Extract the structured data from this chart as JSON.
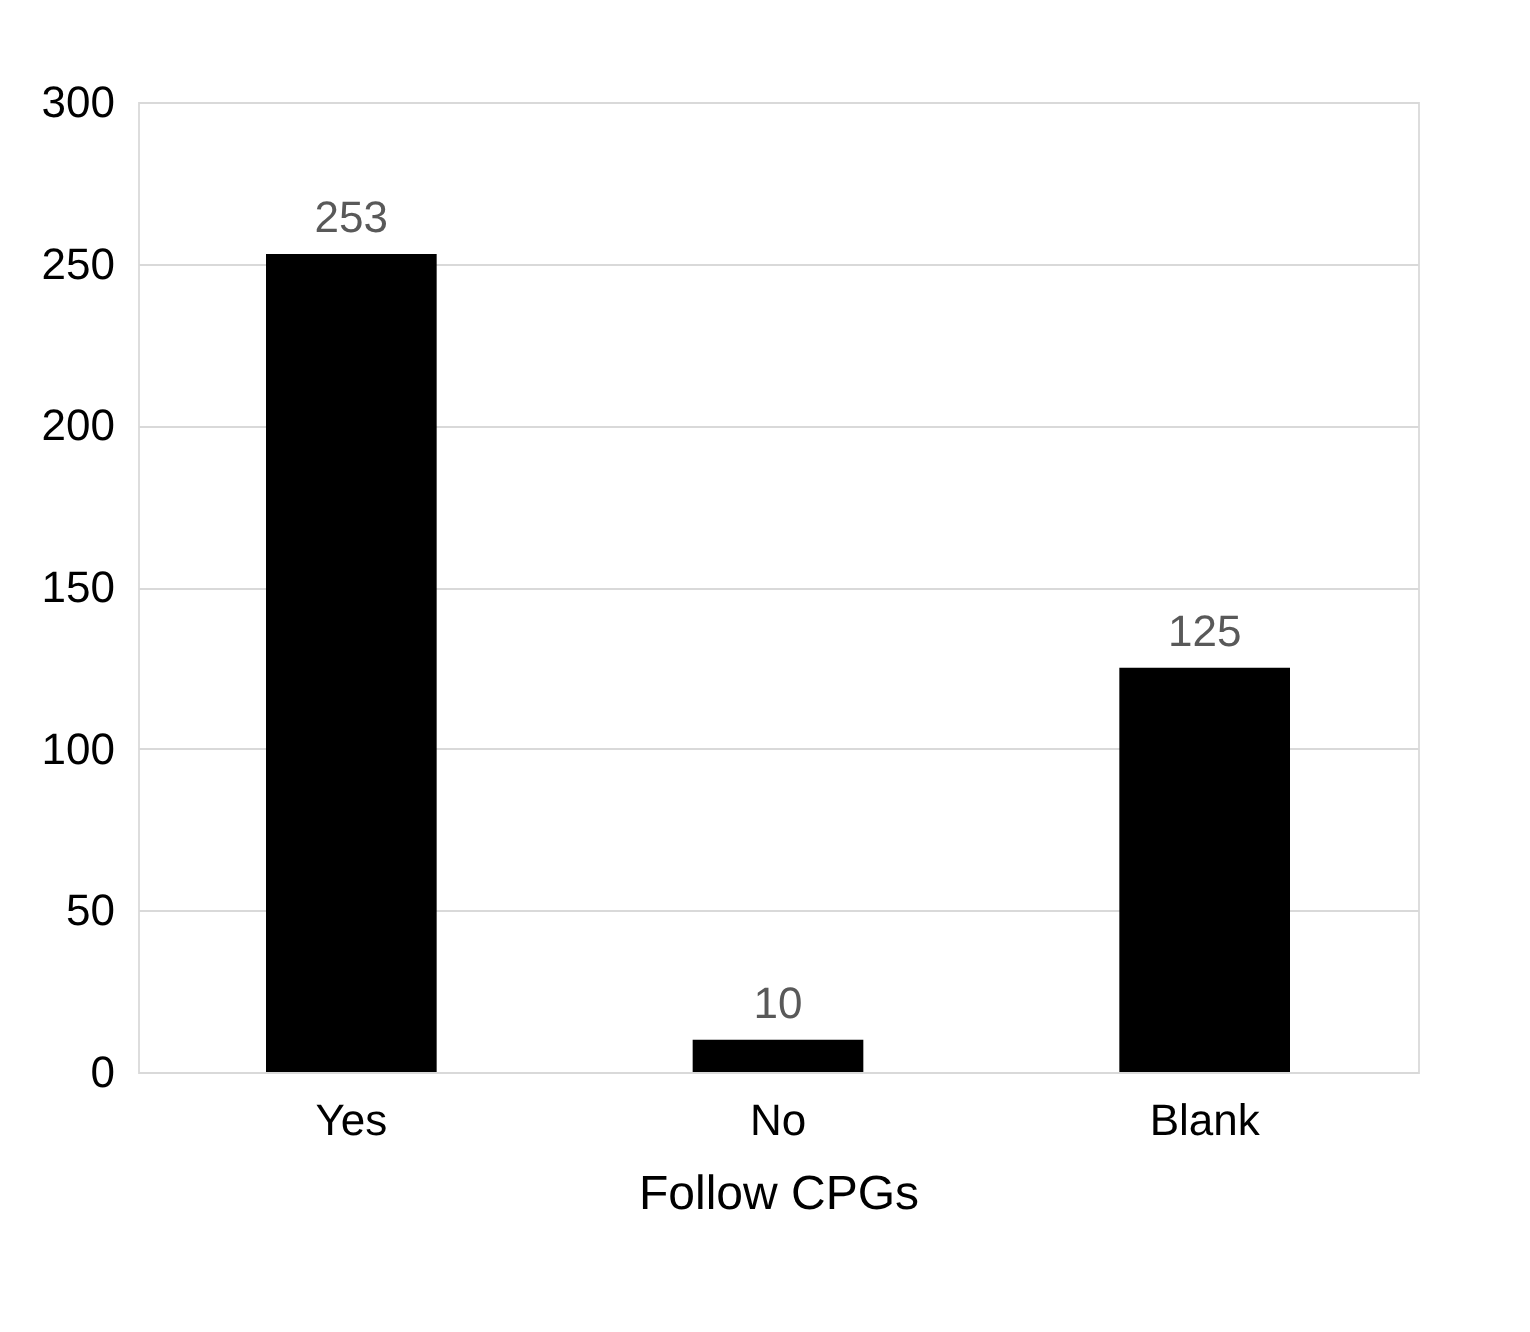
{
  "chart_data": {
    "type": "bar",
    "xlabel": "Follow CPGs",
    "categories": [
      "Yes",
      "No",
      "Blank"
    ],
    "values": [
      253,
      10,
      125
    ],
    "color": "#000000",
    "ylim": [
      0,
      300
    ],
    "yticks": [
      0,
      50,
      100,
      150,
      200,
      250,
      300
    ],
    "grid": "y",
    "data_labels": true
  }
}
